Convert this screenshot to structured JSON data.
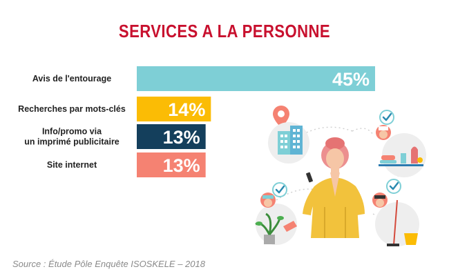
{
  "chart_data": {
    "type": "bar",
    "orientation": "horizontal",
    "title": "SERVICES A LA PERSONNE",
    "categories": [
      [
        "Avis de l'entourage"
      ],
      [
        "Recherches par mots-clés"
      ],
      [
        "Info/promo via",
        "un imprimé publicitaire"
      ],
      [
        "Site internet"
      ]
    ],
    "values": [
      45,
      14,
      13,
      13
    ],
    "value_labels": [
      "45%",
      "14%",
      "13%",
      "13%"
    ],
    "unit": "%",
    "xlim": [
      0,
      45
    ],
    "grid": false,
    "legend": "none",
    "bar_colors": [
      "#7ecfd6",
      "#fbbc05",
      "#143f5c",
      "#f58272"
    ]
  },
  "source": "Source : Étude Pôle Enquête ISOSKELE – 2018",
  "illustration": {
    "icons": [
      "location-pin-icon",
      "building-icon",
      "woman-with-phone-icon",
      "chef-icon",
      "gardener-icon",
      "cleaner-icon",
      "check-icon"
    ]
  }
}
